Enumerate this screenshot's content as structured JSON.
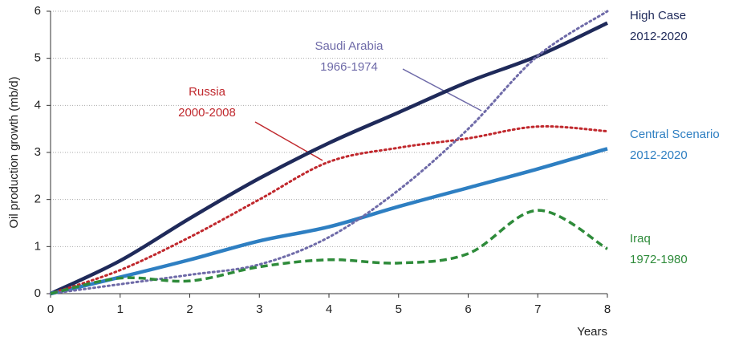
{
  "chart_data": {
    "type": "line",
    "y_label": "Oil production growth (mb/d)",
    "x_label": "Years",
    "x": [
      0,
      1,
      2,
      3,
      4,
      5,
      6,
      7,
      8
    ],
    "xlim": [
      0,
      8
    ],
    "xticks": [
      0,
      1,
      2,
      3,
      4,
      5,
      6,
      7,
      8
    ],
    "ylim": [
      0,
      6
    ],
    "yticks": [
      0,
      1,
      2,
      3,
      4,
      5,
      6
    ],
    "grid": true,
    "series": [
      {
        "name": "High Case",
        "period": "2012-2020",
        "color": "#1f2a5a",
        "style": "solid",
        "values": [
          0,
          0.7,
          1.6,
          2.45,
          3.2,
          3.85,
          4.5,
          5.05,
          5.75
        ]
      },
      {
        "name": "Central Scenario",
        "period": "2012-2020",
        "color": "#2e7fc2",
        "style": "solid",
        "values": [
          0,
          0.35,
          0.72,
          1.12,
          1.42,
          1.85,
          2.25,
          2.65,
          3.08
        ]
      },
      {
        "name": "Russia",
        "period": "2000-2008",
        "color": "#c0282d",
        "style": "dotted",
        "values": [
          0,
          0.5,
          1.2,
          2.0,
          2.8,
          3.1,
          3.3,
          3.55,
          3.45
        ]
      },
      {
        "name": "Saudi Arabia",
        "period": "1966-1974",
        "color": "#6e6aa8",
        "style": "dotted",
        "values": [
          0,
          0.2,
          0.4,
          0.62,
          1.2,
          2.2,
          3.5,
          5.05,
          6.0
        ]
      },
      {
        "name": "Iraq",
        "period": "1972-1980",
        "color": "#2e8b3a",
        "style": "dashed",
        "values": [
          0,
          0.33,
          0.27,
          0.57,
          0.72,
          0.65,
          0.85,
          1.77,
          0.95
        ]
      }
    ]
  }
}
